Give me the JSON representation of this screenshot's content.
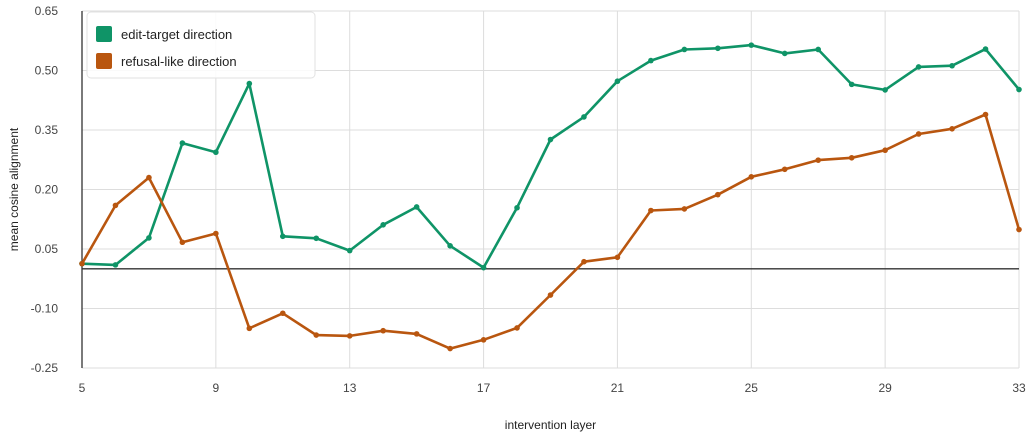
{
  "chart_data": {
    "type": "line",
    "xlabel": "intervention layer",
    "ylabel": "mean cosine alignment",
    "xlim": [
      5,
      33
    ],
    "ylim": [
      -0.25,
      0.65
    ],
    "x_ticks": [
      "5",
      "9",
      "13",
      "17",
      "21",
      "25",
      "29",
      "33"
    ],
    "y_ticks": [
      "0.65",
      "0.50",
      "0.35",
      "0.20",
      "0.05",
      "-0.10",
      "-0.25"
    ],
    "grid": true,
    "legend_position": "top-left",
    "reference_line_y": 0.0,
    "x": [
      5,
      6,
      7,
      8,
      9,
      10,
      11,
      12,
      13,
      14,
      15,
      16,
      17,
      18,
      19,
      20,
      21,
      22,
      23,
      24,
      25,
      26,
      27,
      28,
      29,
      30,
      31,
      32,
      33
    ],
    "series": [
      {
        "name": "edit-target direction",
        "color": "#0f9467",
        "values": [
          0.013,
          0.01,
          0.078,
          0.317,
          0.294,
          0.467,
          0.082,
          0.077,
          0.046,
          0.111,
          0.156,
          0.058,
          0.003,
          0.154,
          0.326,
          0.383,
          0.473,
          0.525,
          0.553,
          0.556,
          0.564,
          0.543,
          0.553,
          0.465,
          0.451,
          0.509,
          0.512,
          0.554,
          0.452
        ]
      },
      {
        "name": "refusal-like direction",
        "color": "#b9560f",
        "values": [
          0.013,
          0.16,
          0.23,
          0.067,
          0.089,
          -0.15,
          -0.112,
          -0.167,
          -0.169,
          -0.156,
          -0.164,
          -0.201,
          -0.179,
          -0.149,
          -0.066,
          0.018,
          0.029,
          0.147,
          0.151,
          0.187,
          0.232,
          0.251,
          0.274,
          0.28,
          0.299,
          0.34,
          0.353,
          0.389,
          0.099
        ]
      }
    ]
  }
}
